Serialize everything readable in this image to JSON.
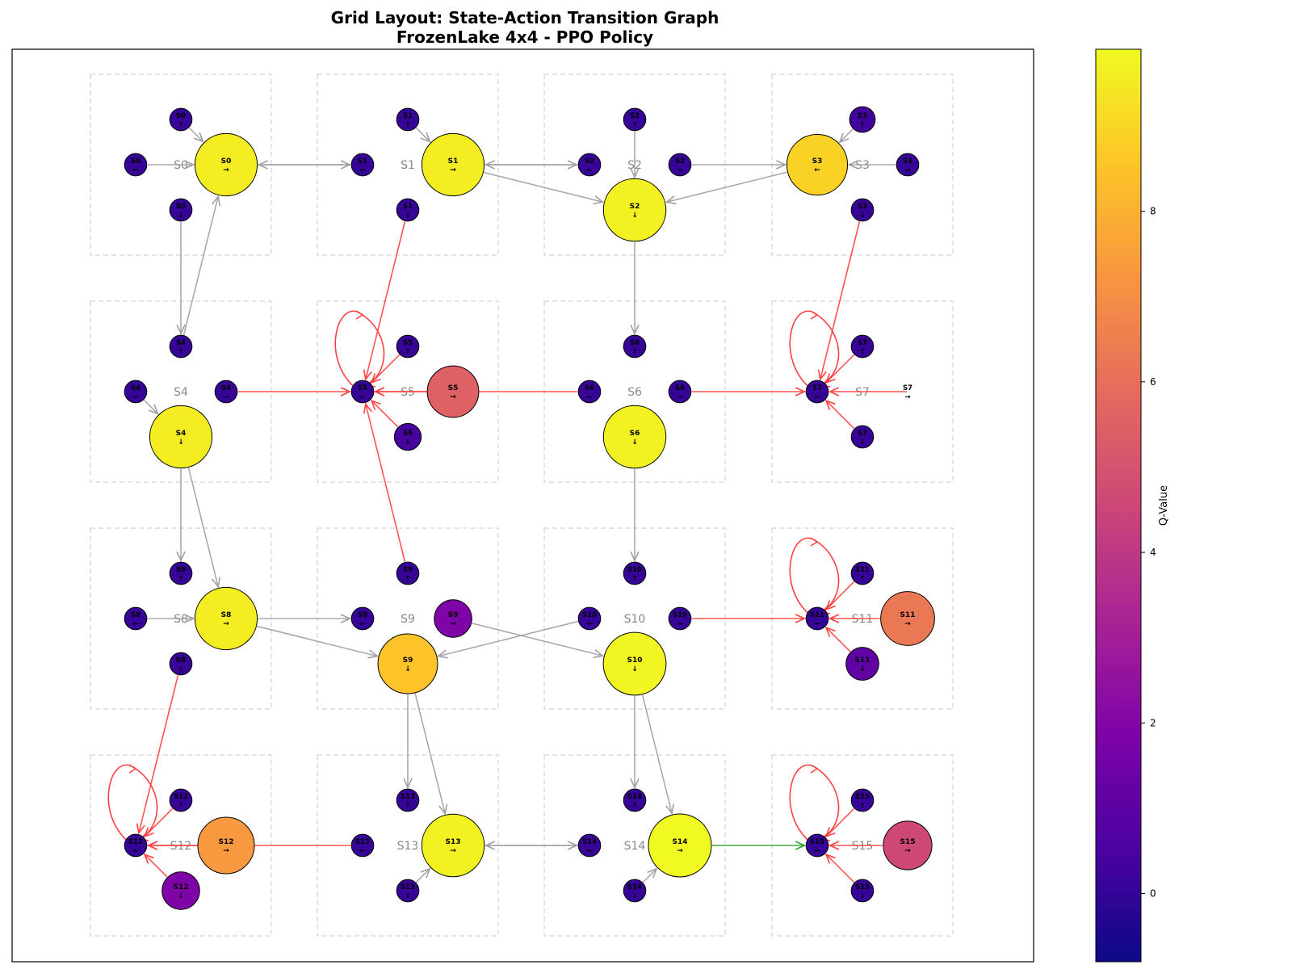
{
  "title": {
    "line1": "Grid Layout: State-Action Transition Graph",
    "line2": "FrozenLake 4x4 - PPO Policy"
  },
  "colorbar": {
    "label": "Q-Value",
    "ticks": [
      "0",
      "2",
      "4",
      "6",
      "8"
    ],
    "vmin": -0.8,
    "vmax": 9.9
  },
  "colors": {
    "transition_default": "#a0a0a0",
    "transition_hole": "#ff4040",
    "transition_goal": "#33a02c",
    "cell_border": "#c8c8c8",
    "cell_label": "#888888",
    "node_edge": "#000000"
  },
  "state_labels": [
    "S0",
    "S1",
    "S2",
    "S3",
    "S4",
    "S5",
    "S6",
    "S7",
    "S8",
    "S9",
    "S10",
    "S11",
    "S12",
    "S13",
    "S14",
    "S15"
  ],
  "state_action_nodes": [
    {
      "state": "S0",
      "label": "S0",
      "action": "←",
      "q": 0.1
    },
    {
      "state": "S0",
      "label": "S0",
      "action": "↓",
      "q": 0.1
    },
    {
      "state": "S0",
      "label": "S0",
      "action": "→",
      "q": 9.6
    },
    {
      "state": "S0",
      "label": "S0",
      "action": "↑",
      "q": 0.1
    },
    {
      "state": "S1",
      "label": "S1",
      "action": "←",
      "q": 0.1
    },
    {
      "state": "S1",
      "label": "S1",
      "action": "↓",
      "q": 0.1
    },
    {
      "state": "S1",
      "label": "S1",
      "action": "→",
      "q": 9.6
    },
    {
      "state": "S1",
      "label": "S1",
      "action": "↑",
      "q": 0.1
    },
    {
      "state": "S2",
      "label": "S2",
      "action": "←",
      "q": 0.1
    },
    {
      "state": "S2",
      "label": "S2",
      "action": "↓",
      "q": 9.7
    },
    {
      "state": "S2",
      "label": "S2",
      "action": "→",
      "q": 0.1
    },
    {
      "state": "S2",
      "label": "S2",
      "action": "↑",
      "q": 0.1
    },
    {
      "state": "S3",
      "label": "S3",
      "action": "←",
      "q": 8.9
    },
    {
      "state": "S3",
      "label": "S3",
      "action": "↓",
      "q": 0.1
    },
    {
      "state": "S3",
      "label": "S3",
      "action": "→",
      "q": 0.1
    },
    {
      "state": "S3",
      "label": "S3",
      "action": "↑",
      "q": 0.3
    },
    {
      "state": "S4",
      "label": "S4",
      "action": "←",
      "q": 0.1
    },
    {
      "state": "S4",
      "label": "S4",
      "action": "↓",
      "q": 9.6
    },
    {
      "state": "S4",
      "label": "S4",
      "action": "→",
      "q": 0.1
    },
    {
      "state": "S4",
      "label": "S4",
      "action": "↑",
      "q": 0.1
    },
    {
      "state": "S5",
      "label": "S5",
      "action": "←",
      "q": 0.1
    },
    {
      "state": "S5",
      "label": "S5",
      "action": "↓",
      "q": 0.4
    },
    {
      "state": "S5",
      "label": "S5",
      "action": "→",
      "q": 5.5
    },
    {
      "state": "S5",
      "label": "S5",
      "action": "↑",
      "q": 0.1
    },
    {
      "state": "S6",
      "label": "S6",
      "action": "←",
      "q": 0.1
    },
    {
      "state": "S6",
      "label": "S6",
      "action": "↓",
      "q": 9.7
    },
    {
      "state": "S6",
      "label": "S6",
      "action": "→",
      "q": 0.1
    },
    {
      "state": "S6",
      "label": "S6",
      "action": "↑",
      "q": 0.1
    },
    {
      "state": "S7",
      "label": "S7",
      "action": "←",
      "q": 0.1
    },
    {
      "state": "S7",
      "label": "S7",
      "action": "↓",
      "q": 0.1
    },
    {
      "state": "S7",
      "label": "S7",
      "action": "→",
      "q": null
    },
    {
      "state": "S7",
      "label": "S7",
      "action": "↑",
      "q": 0.1
    },
    {
      "state": "S8",
      "label": "S8",
      "action": "←",
      "q": 0.1
    },
    {
      "state": "S8",
      "label": "S8",
      "action": "↓",
      "q": 0.1
    },
    {
      "state": "S8",
      "label": "S8",
      "action": "→",
      "q": 9.6
    },
    {
      "state": "S8",
      "label": "S8",
      "action": "↑",
      "q": 0.1
    },
    {
      "state": "S9",
      "label": "S9",
      "action": "←",
      "q": 0.1
    },
    {
      "state": "S9",
      "label": "S9",
      "action": "↓",
      "q": 8.5
    },
    {
      "state": "S9",
      "label": "S9",
      "action": "→",
      "q": 1.9
    },
    {
      "state": "S9",
      "label": "S9",
      "action": "↑",
      "q": 0.1
    },
    {
      "state": "S10",
      "label": "S10",
      "action": "←",
      "q": 0.1
    },
    {
      "state": "S10",
      "label": "S10",
      "action": "↓",
      "q": 9.8
    },
    {
      "state": "S10",
      "label": "S10",
      "action": "→",
      "q": 0.1
    },
    {
      "state": "S10",
      "label": "S10",
      "action": "↑",
      "q": 0.1
    },
    {
      "state": "S11",
      "label": "S11",
      "action": "←",
      "q": 0.1
    },
    {
      "state": "S11",
      "label": "S11",
      "action": "↓",
      "q": 1.1
    },
    {
      "state": "S11",
      "label": "S11",
      "action": "→",
      "q": 6.3
    },
    {
      "state": "S11",
      "label": "S11",
      "action": "↑",
      "q": 0.1
    },
    {
      "state": "S12",
      "label": "S12",
      "action": "←",
      "q": 0.1
    },
    {
      "state": "S12",
      "label": "S12",
      "action": "↓",
      "q": 1.9
    },
    {
      "state": "S12",
      "label": "S12",
      "action": "→",
      "q": 7.3
    },
    {
      "state": "S12",
      "label": "S12",
      "action": "↑",
      "q": 0.1
    },
    {
      "state": "S13",
      "label": "S13",
      "action": "←",
      "q": 0.1
    },
    {
      "state": "S13",
      "label": "S13",
      "action": "↓",
      "q": 0.1
    },
    {
      "state": "S13",
      "label": "S13",
      "action": "→",
      "q": 9.7
    },
    {
      "state": "S13",
      "label": "S13",
      "action": "↑",
      "q": 0.1
    },
    {
      "state": "S14",
      "label": "S14",
      "action": "←",
      "q": 0.1
    },
    {
      "state": "S14",
      "label": "S14",
      "action": "↓",
      "q": 0.1
    },
    {
      "state": "S14",
      "label": "S14",
      "action": "→",
      "q": 9.9
    },
    {
      "state": "S14",
      "label": "S14",
      "action": "↑",
      "q": 0.1
    },
    {
      "state": "S15",
      "label": "S15",
      "action": "←",
      "q": 0.1
    },
    {
      "state": "S15",
      "label": "S15",
      "action": "↓",
      "q": 0.1
    },
    {
      "state": "S15",
      "label": "S15",
      "action": "→",
      "q": 4.6
    },
    {
      "state": "S15",
      "label": "S15",
      "action": "↑",
      "q": 0.1
    }
  ],
  "transitions": [
    {
      "from": "S0 ←",
      "to": "S0 →",
      "kind": "default"
    },
    {
      "from": "S0 ↑",
      "to": "S0 →",
      "kind": "default"
    },
    {
      "from": "S0 ↓",
      "to": "S4 ↑",
      "kind": "default"
    },
    {
      "from": "S4 ↑",
      "to": "S0 →",
      "kind": "default"
    },
    {
      "from": "S0 →",
      "to": "S1 ←",
      "kind": "default"
    },
    {
      "from": "S1 ←",
      "to": "S0 →",
      "kind": "default"
    },
    {
      "from": "S1 ↑",
      "to": "S1 →",
      "kind": "default"
    },
    {
      "from": "S1 →",
      "to": "S2 ←",
      "kind": "default"
    },
    {
      "from": "S2 ←",
      "to": "S1 →",
      "kind": "default"
    },
    {
      "from": "S1 →",
      "to": "S2 ↓",
      "kind": "default"
    },
    {
      "from": "S1 ↓",
      "to": "S5 ←",
      "kind": "hole"
    },
    {
      "from": "S2 ↑",
      "to": "S2 ↓",
      "kind": "default"
    },
    {
      "from": "S2 →",
      "to": "S3 ←",
      "kind": "default"
    },
    {
      "from": "S3 ←",
      "to": "S2 ↓",
      "kind": "default"
    },
    {
      "from": "S2 ↓",
      "to": "S6 ↑",
      "kind": "default"
    },
    {
      "from": "S3 →",
      "to": "S3 ←",
      "kind": "default"
    },
    {
      "from": "S3 ↑",
      "to": "S3 ←",
      "kind": "default"
    },
    {
      "from": "S3 ↓",
      "to": "S7 ←",
      "kind": "hole"
    },
    {
      "from": "S4 ←",
      "to": "S4 ↓",
      "kind": "default"
    },
    {
      "from": "S4 →",
      "to": "S5 ←",
      "kind": "hole"
    },
    {
      "from": "S4 ↓",
      "to": "S8 ↑",
      "kind": "default"
    },
    {
      "from": "S4 ↓",
      "to": "S8 →",
      "kind": "default"
    },
    {
      "from": "S5 ↑",
      "to": "S5 ←",
      "kind": "hole"
    },
    {
      "from": "S5 ↓",
      "to": "S5 ←",
      "kind": "hole"
    },
    {
      "from": "S5 →",
      "to": "S5 ←",
      "kind": "hole"
    },
    {
      "from": "S6 ←",
      "to": "S5 ←",
      "kind": "hole"
    },
    {
      "from": "S6 →",
      "to": "S7 ←",
      "kind": "hole"
    },
    {
      "from": "S6 ↓",
      "to": "S10 ↑",
      "kind": "default"
    },
    {
      "from": "S7 ↑",
      "to": "S7 ←",
      "kind": "hole"
    },
    {
      "from": "S7 ↓",
      "to": "S7 ←",
      "kind": "hole"
    },
    {
      "from": "S7 →",
      "to": "S7 ←",
      "kind": "hole"
    },
    {
      "from": "S9 ↑",
      "to": "S5 ←",
      "kind": "hole"
    },
    {
      "from": "S8 ←",
      "to": "S8 →",
      "kind": "default"
    },
    {
      "from": "S8 →",
      "to": "S9 ←",
      "kind": "default"
    },
    {
      "from": "S8 →",
      "to": "S9 ↓",
      "kind": "default"
    },
    {
      "from": "S8 ↓",
      "to": "S12 ←",
      "kind": "hole"
    },
    {
      "from": "S9 →",
      "to": "S10 ↓",
      "kind": "default"
    },
    {
      "from": "S10 ←",
      "to": "S9 ↓",
      "kind": "default"
    },
    {
      "from": "S9 ↓",
      "to": "S13 ↑",
      "kind": "default"
    },
    {
      "from": "S9 ↓",
      "to": "S13 →",
      "kind": "default"
    },
    {
      "from": "S10 →",
      "to": "S11 ←",
      "kind": "hole"
    },
    {
      "from": "S10 ↓",
      "to": "S14 ↑",
      "kind": "default"
    },
    {
      "from": "S10 ↓",
      "to": "S14 →",
      "kind": "default"
    },
    {
      "from": "S11 ↑",
      "to": "S11 ←",
      "kind": "hole"
    },
    {
      "from": "S11 →",
      "to": "S11 ←",
      "kind": "hole"
    },
    {
      "from": "S11 ↓",
      "to": "S11 ←",
      "kind": "hole"
    },
    {
      "from": "S12 ↑",
      "to": "S12 ←",
      "kind": "hole"
    },
    {
      "from": "S12 ↓",
      "to": "S12 ←",
      "kind": "hole"
    },
    {
      "from": "S12 →",
      "to": "S12 ←",
      "kind": "hole"
    },
    {
      "from": "S13 ←",
      "to": "S12 ←",
      "kind": "hole"
    },
    {
      "from": "S13 ↓",
      "to": "S13 →",
      "kind": "default"
    },
    {
      "from": "S13 →",
      "to": "S14 ←",
      "kind": "default"
    },
    {
      "from": "S14 ←",
      "to": "S13 →",
      "kind": "default"
    },
    {
      "from": "S14 ↓",
      "to": "S14 →",
      "kind": "default"
    },
    {
      "from": "S14 →",
      "to": "S15 ←",
      "kind": "goal"
    },
    {
      "from": "S15 ↑",
      "to": "S15 ←",
      "kind": "hole"
    },
    {
      "from": "S15 ↓",
      "to": "S15 ←",
      "kind": "hole"
    },
    {
      "from": "S15 →",
      "to": "S15 ←",
      "kind": "hole"
    }
  ],
  "self_loops": [
    "S5 ←",
    "S7 ←",
    "S11 ←",
    "S12 ←",
    "S15 ←"
  ]
}
